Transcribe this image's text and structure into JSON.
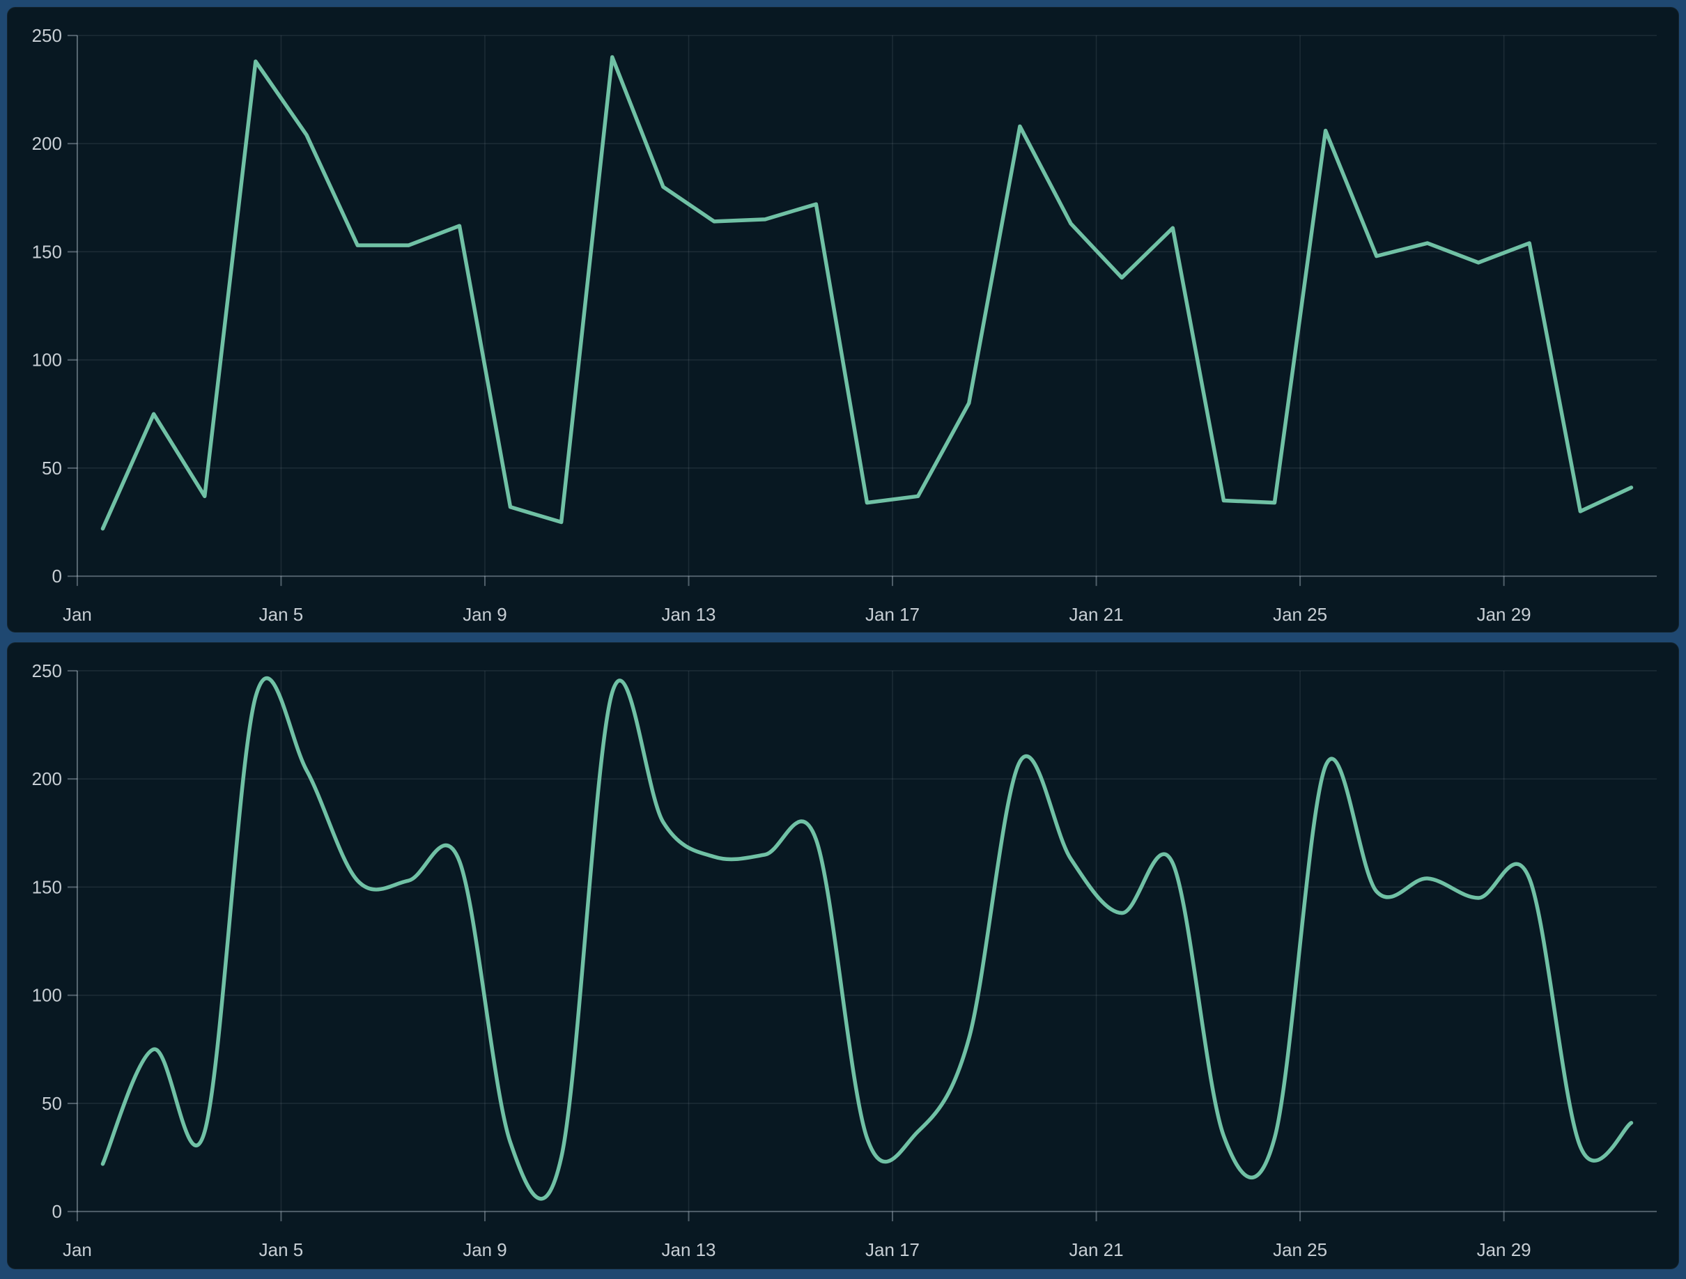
{
  "page": {
    "background_color": "#1f4871",
    "panel_background_color": "#081822",
    "accent_color": "#70c1a5"
  },
  "chart_data": [
    {
      "type": "line",
      "smooth": false,
      "title": "",
      "xlabel": "",
      "ylabel": "",
      "categories": [
        "Jan 1",
        "Jan 2",
        "Jan 3",
        "Jan 4",
        "Jan 5",
        "Jan 6",
        "Jan 7",
        "Jan 8",
        "Jan 9",
        "Jan 10",
        "Jan 11",
        "Jan 12",
        "Jan 13",
        "Jan 14",
        "Jan 15",
        "Jan 16",
        "Jan 17",
        "Jan 18",
        "Jan 19",
        "Jan 20",
        "Jan 21",
        "Jan 22",
        "Jan 23",
        "Jan 24",
        "Jan 25",
        "Jan 26",
        "Jan 27",
        "Jan 28",
        "Jan 29",
        "Jan 30",
        "Jan 31"
      ],
      "values": [
        22,
        75,
        37,
        238,
        204,
        153,
        153,
        162,
        32,
        25,
        240,
        180,
        164,
        165,
        172,
        34,
        37,
        80,
        208,
        163,
        138,
        161,
        35,
        34,
        206,
        148,
        154,
        145,
        154,
        30,
        41
      ],
      "x_tick_labels": [
        "Jan",
        "Jan 5",
        "Jan 9",
        "Jan 13",
        "Jan 17",
        "Jan 21",
        "Jan 25",
        "Jan 29"
      ],
      "x_tick_day_indices": [
        0,
        4,
        8,
        12,
        16,
        20,
        24,
        28
      ],
      "y_ticks": [
        0,
        50,
        100,
        150,
        200,
        250
      ],
      "ylim": [
        0,
        250
      ],
      "grid": true,
      "legend": false,
      "line_color": "#70c1a5",
      "axis_label_color": "#c7ced4",
      "axis_line_color": "rgba(215,230,240,0.35)",
      "grid_line_color": "rgba(215,230,240,0.10)"
    },
    {
      "type": "line",
      "smooth": true,
      "title": "",
      "xlabel": "",
      "ylabel": "",
      "categories": [
        "Jan 1",
        "Jan 2",
        "Jan 3",
        "Jan 4",
        "Jan 5",
        "Jan 6",
        "Jan 7",
        "Jan 8",
        "Jan 9",
        "Jan 10",
        "Jan 11",
        "Jan 12",
        "Jan 13",
        "Jan 14",
        "Jan 15",
        "Jan 16",
        "Jan 17",
        "Jan 18",
        "Jan 19",
        "Jan 20",
        "Jan 21",
        "Jan 22",
        "Jan 23",
        "Jan 24",
        "Jan 25",
        "Jan 26",
        "Jan 27",
        "Jan 28",
        "Jan 29",
        "Jan 30",
        "Jan 31"
      ],
      "values": [
        22,
        75,
        37,
        238,
        204,
        153,
        153,
        162,
        32,
        25,
        240,
        180,
        164,
        165,
        172,
        34,
        37,
        80,
        208,
        163,
        138,
        161,
        35,
        34,
        206,
        148,
        154,
        145,
        154,
        30,
        41
      ],
      "x_tick_labels": [
        "Jan",
        "Jan 5",
        "Jan 9",
        "Jan 13",
        "Jan 17",
        "Jan 21",
        "Jan 25",
        "Jan 29"
      ],
      "x_tick_day_indices": [
        0,
        4,
        8,
        12,
        16,
        20,
        24,
        28
      ],
      "y_ticks": [
        0,
        50,
        100,
        150,
        200,
        250
      ],
      "ylim": [
        0,
        250
      ],
      "grid": true,
      "legend": false,
      "line_color": "#70c1a5",
      "axis_label_color": "#c7ced4",
      "axis_line_color": "rgba(215,230,240,0.35)",
      "grid_line_color": "rgba(215,230,240,0.10)"
    }
  ]
}
